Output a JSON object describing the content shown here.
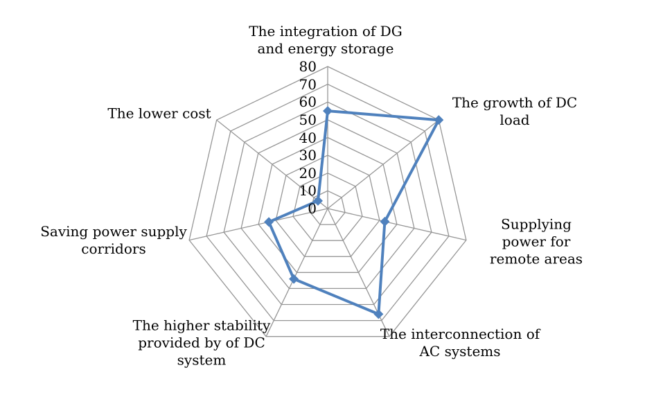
{
  "chart_data": {
    "type": "radar",
    "title": "",
    "categories": [
      "The integration of DG\nand energy storage",
      "The growth of DC load",
      "Supplying power for\nremote areas",
      "The interconnection of\nAC systems",
      "The higher stability\nprovided by of DC\nsystem",
      "Saving power supply\ncorridors",
      "The lower cost"
    ],
    "values": [
      55,
      80,
      33,
      66,
      44,
      34,
      7
    ],
    "radial_axis": {
      "min": 0,
      "max": 80,
      "tick_interval": 10,
      "tick_labels": [
        "0",
        "10",
        "20",
        "30",
        "40",
        "50",
        "60",
        "70",
        "80"
      ]
    },
    "grid": true,
    "legend": "none",
    "colors": {
      "series_line": "#4F81BD",
      "gridline": "#969696",
      "text": "#000000",
      "background": "#FFFFFF"
    }
  }
}
